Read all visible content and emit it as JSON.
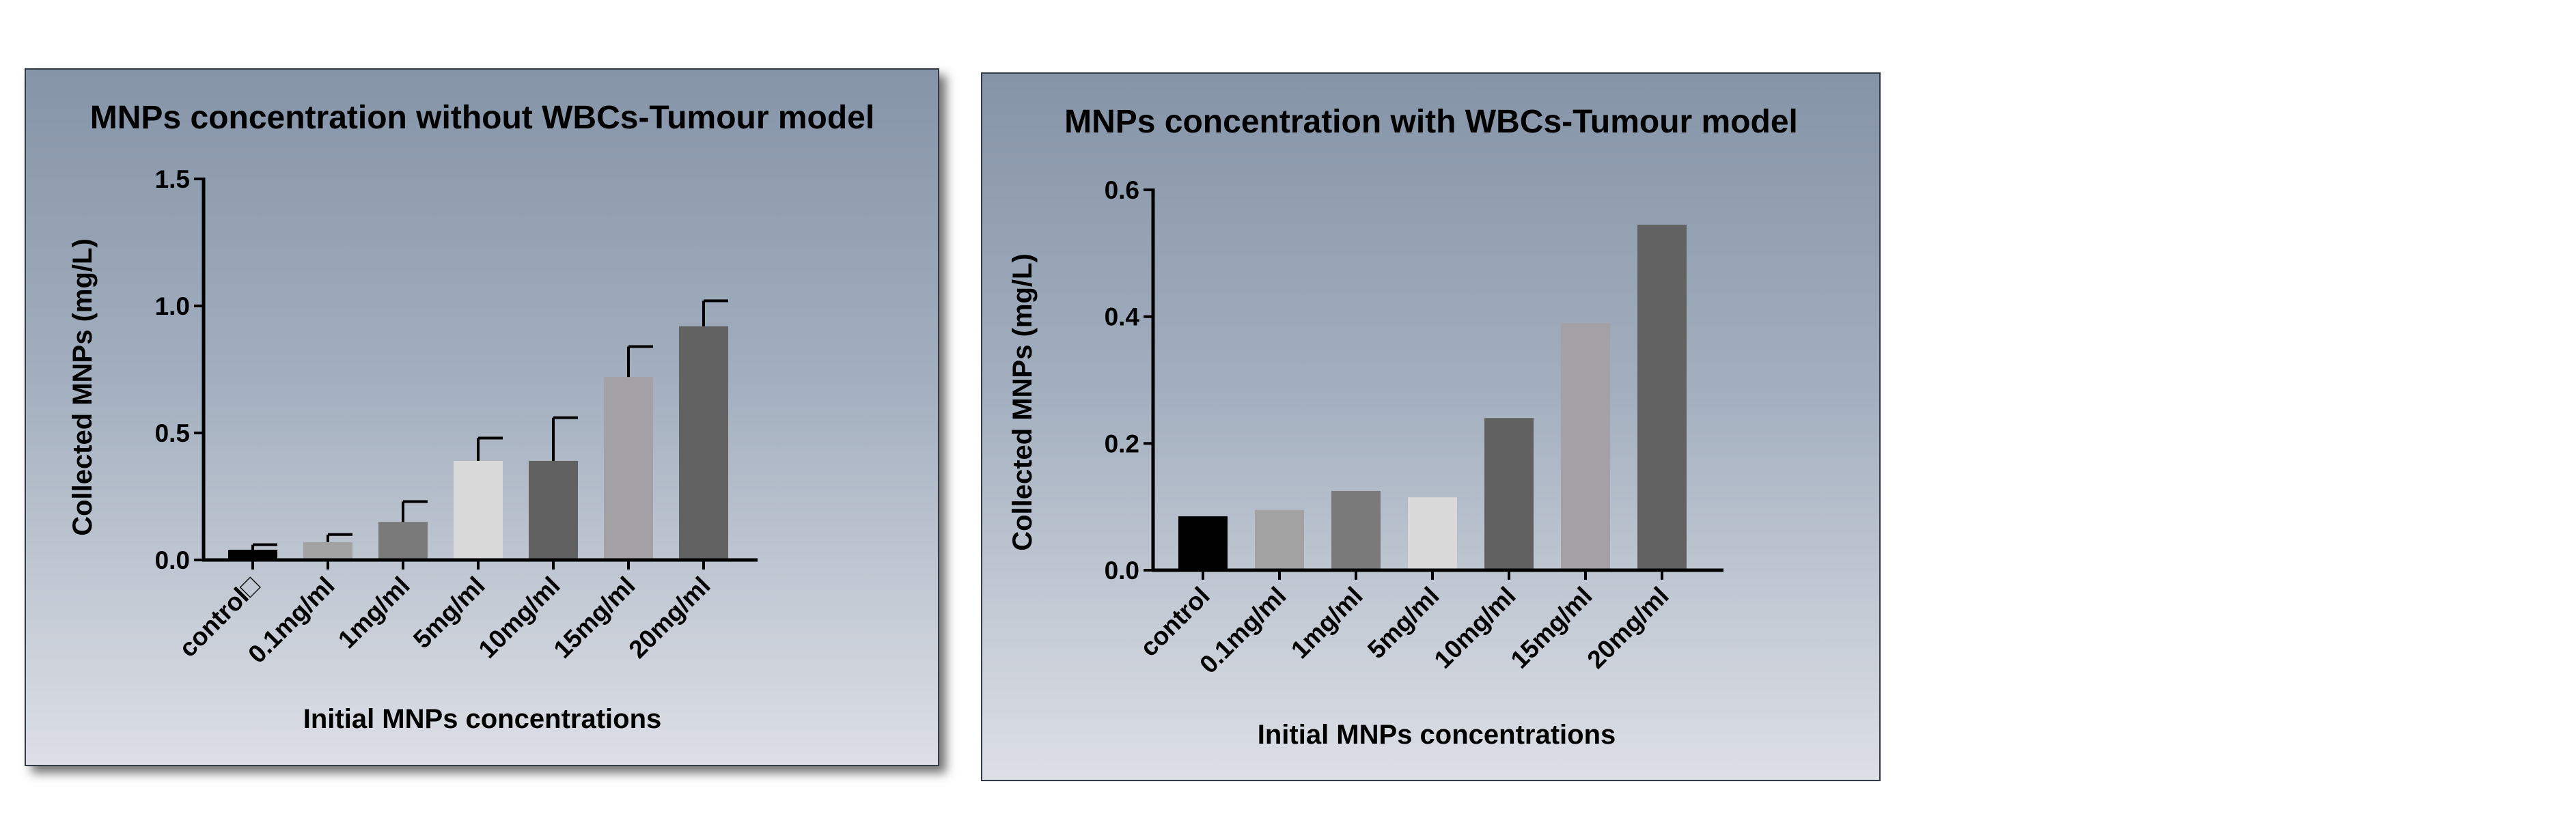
{
  "chart_data": [
    {
      "type": "bar",
      "title": "MNPs concentration without WBCs-Tumour model",
      "xlabel": "Initial MNPs concentrations",
      "ylabel": "Collected MNPs (mg/L)",
      "categories": [
        "control□",
        "0.1mg/ml",
        "1mg/ml",
        "5mg/ml",
        "10mg/ml",
        "15mg/ml",
        "20mg/ml"
      ],
      "values": [
        0.04,
        0.07,
        0.15,
        0.39,
        0.39,
        0.72,
        0.92
      ],
      "errors": [
        0.02,
        0.03,
        0.08,
        0.09,
        0.17,
        0.12,
        0.1
      ],
      "colors": [
        "#000000",
        "#a2a2a2",
        "#7a7a7a",
        "#d9d9d9",
        "#616161",
        "#a3a1a6",
        "#626262"
      ],
      "ylim": [
        0,
        1.5
      ],
      "yticks": [
        "0.0",
        "0.5",
        "1.0",
        "1.5"
      ],
      "ytick_values": [
        0,
        0.5,
        1.0,
        1.5
      ]
    },
    {
      "type": "bar",
      "title": "MNPs concentration with WBCs-Tumour model",
      "xlabel": "Initial MNPs concentrations",
      "ylabel": "Collected MNPs (mg/L)",
      "categories": [
        "control",
        "0.1mg/ml",
        "1mg/ml",
        "5mg/ml",
        "10mg/ml",
        "15mg/ml",
        "20mg/ml"
      ],
      "values": [
        0.085,
        0.095,
        0.125,
        0.115,
        0.24,
        0.39,
        0.545
      ],
      "colors": [
        "#000000",
        "#a2a2a2",
        "#7a7a7a",
        "#d9d9d9",
        "#616161",
        "#a3a1a6",
        "#626262"
      ],
      "ylim": [
        0,
        0.6
      ],
      "yticks": [
        "0.0",
        "0.2",
        "0.4",
        "0.6"
      ],
      "ytick_values": [
        0,
        0.2,
        0.4,
        0.6
      ]
    }
  ]
}
